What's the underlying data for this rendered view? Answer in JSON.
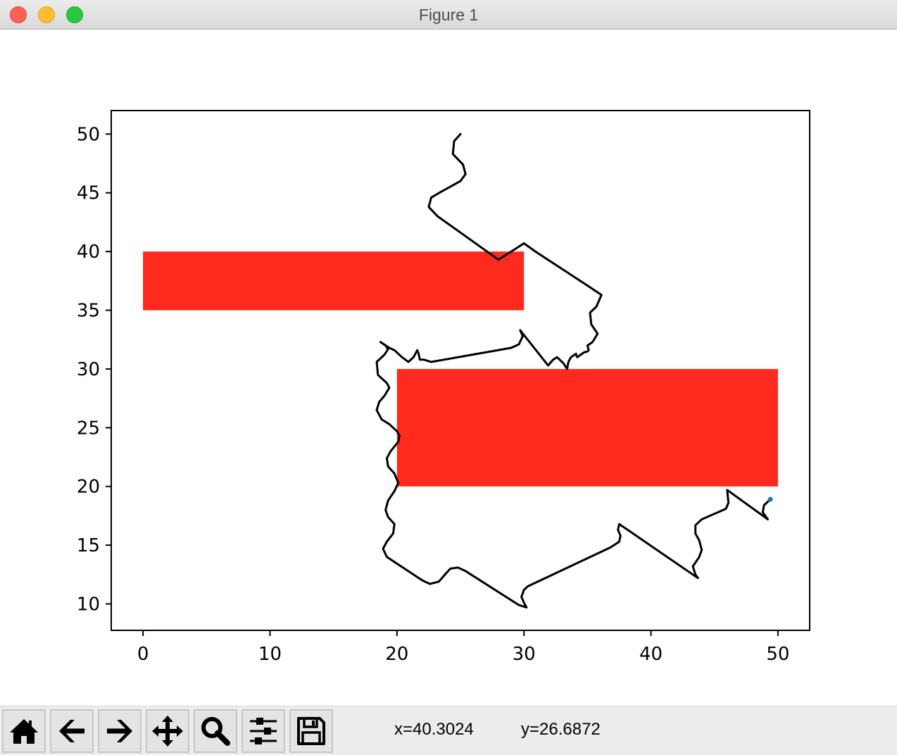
{
  "window": {
    "title": "Figure 1"
  },
  "toolbar": {
    "buttons": [
      {
        "name": "home",
        "icon": "home-icon"
      },
      {
        "name": "back",
        "icon": "arrow-left-icon"
      },
      {
        "name": "forward",
        "icon": "arrow-right-icon"
      },
      {
        "name": "pan",
        "icon": "move-icon"
      },
      {
        "name": "zoom",
        "icon": "magnifier-icon"
      },
      {
        "name": "configure-subplots",
        "icon": "sliders-icon"
      },
      {
        "name": "save",
        "icon": "floppy-disk-icon"
      }
    ],
    "x_readout": "x=40.3024",
    "y_readout": "y=26.6872"
  },
  "chart_data": {
    "type": "line",
    "title": "",
    "xlabel": "",
    "ylabel": "",
    "xlim": [
      -2.5,
      52.5
    ],
    "ylim": [
      7.75,
      52.0
    ],
    "xticks": [
      0,
      10,
      20,
      30,
      40,
      50
    ],
    "yticks": [
      10,
      15,
      20,
      25,
      30,
      35,
      40,
      45,
      50
    ],
    "grid": false,
    "rectangles": [
      {
        "x0": 0,
        "y0": 35,
        "x1": 30,
        "y1": 40,
        "color": "#ff2a1e"
      },
      {
        "x0": 20,
        "y0": 20,
        "x1": 50,
        "y1": 30,
        "color": "#ff2a1e"
      }
    ],
    "path": {
      "color": "#000000",
      "points": [
        [
          25.0,
          50.0
        ],
        [
          24.5,
          49.4
        ],
        [
          24.4,
          48.3
        ],
        [
          25.2,
          47.4
        ],
        [
          25.4,
          46.6
        ],
        [
          25.0,
          46.0
        ],
        [
          23.5,
          45.1
        ],
        [
          22.7,
          44.6
        ],
        [
          22.5,
          43.8
        ],
        [
          23.2,
          43.0
        ],
        [
          28.0,
          39.3
        ],
        [
          29.0,
          40.0
        ],
        [
          30.0,
          40.7
        ],
        [
          30.9,
          40.0
        ],
        [
          35.0,
          37.1
        ],
        [
          36.1,
          36.3
        ],
        [
          35.7,
          35.3
        ],
        [
          35.2,
          34.8
        ],
        [
          35.3,
          33.8
        ],
        [
          35.8,
          33.0
        ],
        [
          35.4,
          32.3
        ],
        [
          35.0,
          32.0
        ],
        [
          35.1,
          31.6
        ],
        [
          35.0,
          31.5
        ],
        [
          34.7,
          31.4
        ],
        [
          34.2,
          31.0
        ],
        [
          34.1,
          31.2
        ],
        [
          34.1,
          31.3
        ],
        [
          33.7,
          31.0
        ],
        [
          33.5,
          30.6
        ],
        [
          33.4,
          30.0
        ],
        [
          33.1,
          30.5
        ],
        [
          32.6,
          31.0
        ],
        [
          32.3,
          30.8
        ],
        [
          31.9,
          30.3
        ],
        [
          29.7,
          33.3
        ],
        [
          29.9,
          32.8
        ],
        [
          29.6,
          32.1
        ],
        [
          29.0,
          31.8
        ],
        [
          22.7,
          30.6
        ],
        [
          22.1,
          30.8
        ],
        [
          21.8,
          30.8
        ],
        [
          21.7,
          31.3
        ],
        [
          21.6,
          31.6
        ],
        [
          21.3,
          31.0
        ],
        [
          20.9,
          30.6
        ],
        [
          20.4,
          31.0
        ],
        [
          19.8,
          31.6
        ],
        [
          19.4,
          31.8
        ],
        [
          18.7,
          32.3
        ],
        [
          19.1,
          32.0
        ],
        [
          19.3,
          31.7
        ],
        [
          19.0,
          31.2
        ],
        [
          18.4,
          30.6
        ],
        [
          18.5,
          29.5
        ],
        [
          19.2,
          28.8
        ],
        [
          19.4,
          28.4
        ],
        [
          19.0,
          27.7
        ],
        [
          18.6,
          27.2
        ],
        [
          18.4,
          26.5
        ],
        [
          18.8,
          25.7
        ],
        [
          19.4,
          25.3
        ],
        [
          20.0,
          24.7
        ],
        [
          20.2,
          24.3
        ],
        [
          20.1,
          23.8
        ],
        [
          19.5,
          23.0
        ],
        [
          19.2,
          22.4
        ],
        [
          19.3,
          21.7
        ],
        [
          19.8,
          21.1
        ],
        [
          20.1,
          20.3
        ],
        [
          19.8,
          19.6
        ],
        [
          19.3,
          18.8
        ],
        [
          19.1,
          18.0
        ],
        [
          19.3,
          17.4
        ],
        [
          19.8,
          16.8
        ],
        [
          19.7,
          16.0
        ],
        [
          19.2,
          15.3
        ],
        [
          18.9,
          14.7
        ],
        [
          19.2,
          14.0
        ],
        [
          22.0,
          12.0
        ],
        [
          22.6,
          11.7
        ],
        [
          23.3,
          11.9
        ],
        [
          23.7,
          12.4
        ],
        [
          24.2,
          13.0
        ],
        [
          24.8,
          13.1
        ],
        [
          25.4,
          12.8
        ],
        [
          29.6,
          9.9
        ],
        [
          30.2,
          9.7
        ],
        [
          30.0,
          10.1
        ],
        [
          29.8,
          10.6
        ],
        [
          30.0,
          11.2
        ],
        [
          30.3,
          11.5
        ],
        [
          36.8,
          14.8
        ],
        [
          37.5,
          15.3
        ],
        [
          37.6,
          15.8
        ],
        [
          37.4,
          16.3
        ],
        [
          37.5,
          16.8
        ],
        [
          43.7,
          12.2
        ],
        [
          43.5,
          12.5
        ],
        [
          43.3,
          13.2
        ],
        [
          43.8,
          14.0
        ],
        [
          44.0,
          14.6
        ],
        [
          43.8,
          15.4
        ],
        [
          43.5,
          16.0
        ],
        [
          43.5,
          16.7
        ],
        [
          44.0,
          17.2
        ],
        [
          45.9,
          18.1
        ],
        [
          46.1,
          18.6
        ],
        [
          46.0,
          19.7
        ],
        [
          49.2,
          17.2
        ],
        [
          49.0,
          17.5
        ],
        [
          48.8,
          17.8
        ],
        [
          48.9,
          18.4
        ],
        [
          49.3,
          18.8
        ],
        [
          49.4,
          18.9
        ]
      ]
    },
    "marker": {
      "x": 49.4,
      "y": 18.9,
      "color": "#1f77b4"
    }
  }
}
